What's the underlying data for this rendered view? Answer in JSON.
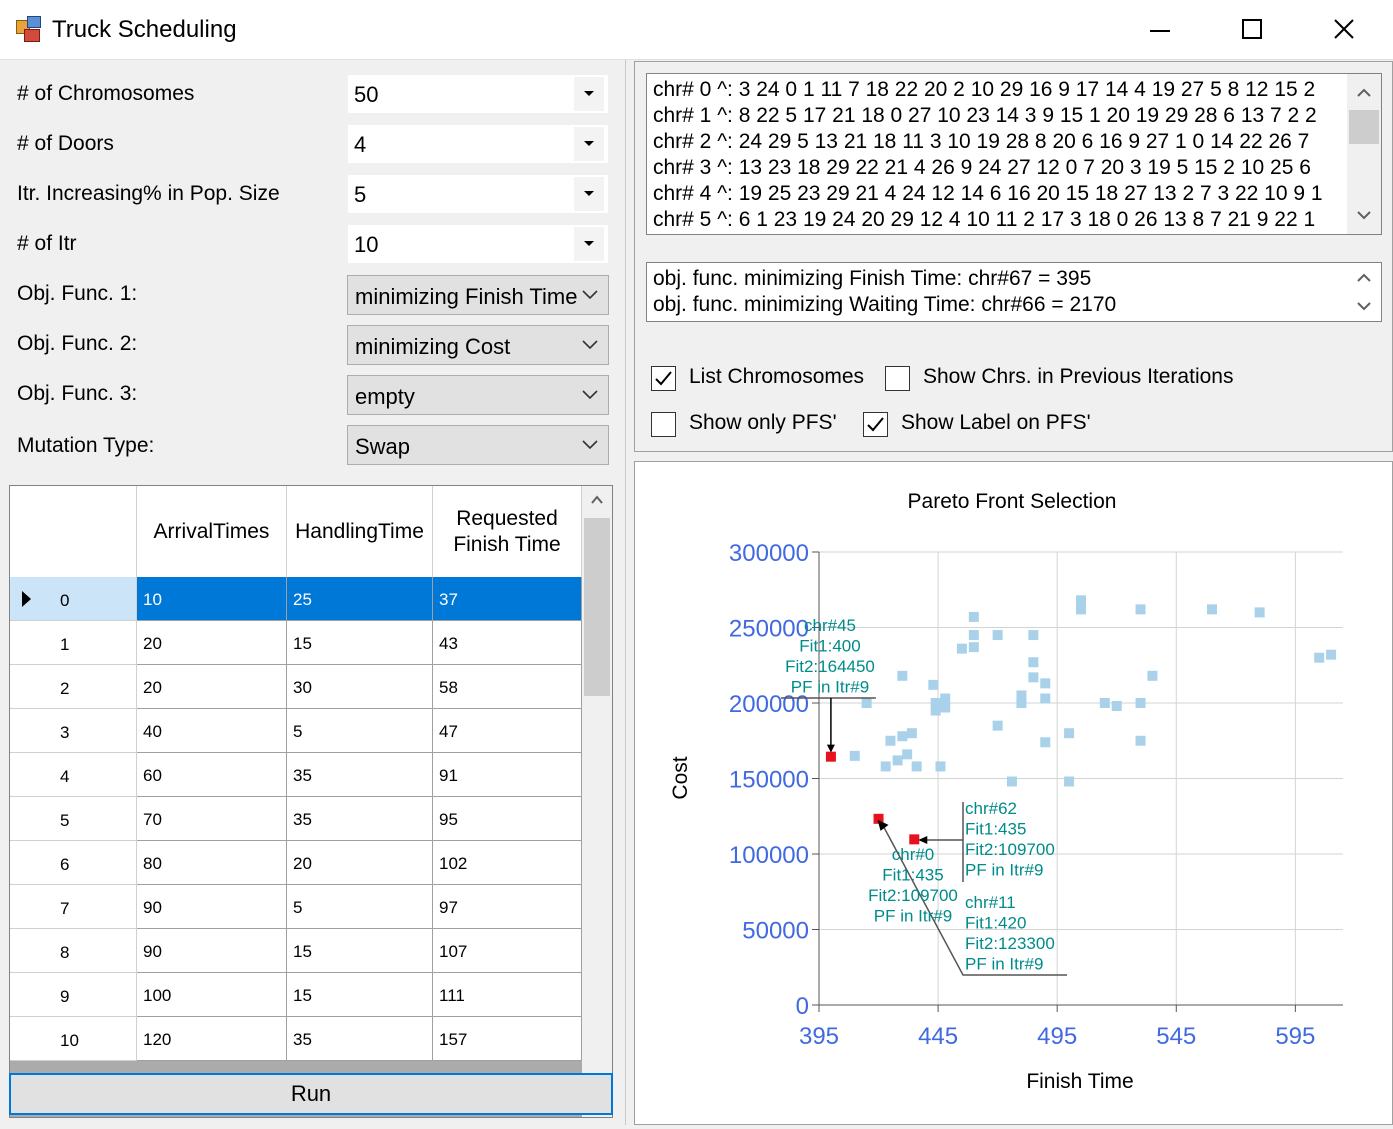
{
  "window": {
    "title": "Truck Scheduling"
  },
  "form": {
    "chromosomes": {
      "label": "# of Chromosomes",
      "value": "50"
    },
    "doors": {
      "label": "# of Doors",
      "value": "4"
    },
    "itr_increase": {
      "label": "Itr. Increasing% in Pop. Size",
      "value": "5"
    },
    "itr": {
      "label": "# of Itr",
      "value": "10"
    },
    "obj1": {
      "label": "Obj. Func. 1:",
      "value": "minimizing Finish Time"
    },
    "obj2": {
      "label": "Obj. Func. 2:",
      "value": "minimizing Cost"
    },
    "obj3": {
      "label": "Obj. Func. 3:",
      "value": "empty"
    },
    "mutation": {
      "label": "Mutation Type:",
      "value": "Swap"
    }
  },
  "grid": {
    "headers": [
      "ArrivalTimes",
      "HandlingTime",
      "Requested\nFinish Time"
    ],
    "header_line1": "Requested",
    "header_line2": "Finish Time",
    "rows": [
      [
        "0",
        "10",
        "25",
        "37"
      ],
      [
        "1",
        "20",
        "15",
        "43"
      ],
      [
        "2",
        "20",
        "30",
        "58"
      ],
      [
        "3",
        "40",
        "5",
        "47"
      ],
      [
        "4",
        "60",
        "35",
        "91"
      ],
      [
        "5",
        "70",
        "35",
        "95"
      ],
      [
        "6",
        "80",
        "20",
        "102"
      ],
      [
        "7",
        "90",
        "5",
        "97"
      ],
      [
        "8",
        "90",
        "15",
        "107"
      ],
      [
        "9",
        "100",
        "15",
        "111"
      ],
      [
        "10",
        "120",
        "35",
        "157"
      ]
    ]
  },
  "run_label": "Run",
  "chromosome_list": [
    "chr# 0 ^:  3 24 0 1 11 7 18 22 20 2 10 29 16 9 17 14 4 19 27 5 8 12 15 2",
    "chr# 1 ^:  8 22 5 17 21 18 0 27 10 23 14 3 9 15 1 20 19 29 28 6 13 7 2 2",
    "chr# 2 ^:  24 29 5 13 21 18 11 3 10 19 28 8 20 6 16 9 27 1 0 14 22 26 7",
    "chr# 3 ^:  13 23 18 29 22 21 4 26 9 24 27 12 0 7 20 3 19 5 15 2 10 25 6",
    "chr# 4 ^:  19 25 23 29 21 4 24 12 14 6 16 20 15 18 27 13 2 7 3 22 10 9 1",
    "chr# 5 ^:  6 1 23 19 24 20 29 12 4 10 11 2 17 3 18 0 26 13 8 7 21 9 22 1"
  ],
  "results": [
    "obj. func. minimizing Finish Time: chr#67 = 395",
    "obj. func. minimizing Waiting Time: chr#66 = 2170"
  ],
  "options": {
    "list_chromosomes": {
      "label": "List Chromosomes",
      "checked": true
    },
    "show_previous": {
      "label": "Show Chrs. in Previous Iterations",
      "checked": false
    },
    "show_only_pfs": {
      "label": "Show only PFS'",
      "checked": false
    },
    "show_label_pfs": {
      "label": "Show Label on PFS'",
      "checked": true
    }
  },
  "colors": {
    "selection": "#0078d7",
    "pareto": "#e8121e",
    "population": "#a9d2ea",
    "axis_label": "#4169e1",
    "annotation": "#008b8b"
  },
  "chart_data": {
    "type": "scatter",
    "title": "Pareto Front Selection",
    "xlabel": "Finish Time",
    "ylabel": "Cost",
    "xlim": [
      395,
      615
    ],
    "ylim": [
      0,
      300000
    ],
    "xticks": [
      395,
      445,
      495,
      545,
      595
    ],
    "yticks": [
      0,
      50000,
      100000,
      150000,
      200000,
      250000,
      300000
    ],
    "series": [
      {
        "points": [
          [
            415,
            200000
          ],
          [
            410,
            165000
          ],
          [
            425,
            175000
          ],
          [
            423,
            158000
          ],
          [
            428,
            162000
          ],
          [
            430,
            178000
          ],
          [
            432,
            166000
          ],
          [
            434,
            180000
          ],
          [
            436,
            158000
          ],
          [
            430,
            218000
          ],
          [
            443,
            212000
          ],
          [
            444,
            200000
          ],
          [
            444,
            195000
          ],
          [
            448,
            203000
          ],
          [
            448,
            197000
          ],
          [
            446,
            158000
          ],
          [
            455,
            236000
          ],
          [
            460,
            245000
          ],
          [
            460,
            257000
          ],
          [
            460,
            237000
          ],
          [
            470,
            245000
          ],
          [
            470,
            185000
          ],
          [
            476,
            148000
          ],
          [
            480,
            205000
          ],
          [
            480,
            200000
          ],
          [
            485,
            245000
          ],
          [
            485,
            227000
          ],
          [
            485,
            217000
          ],
          [
            490,
            213000
          ],
          [
            490,
            203000
          ],
          [
            490,
            174000
          ],
          [
            500,
            180000
          ],
          [
            500,
            148000
          ],
          [
            505,
            268000
          ],
          [
            505,
            262000
          ],
          [
            515,
            200000
          ],
          [
            520,
            198000
          ],
          [
            530,
            262000
          ],
          [
            530,
            200000
          ],
          [
            530,
            175000
          ],
          [
            535,
            218000
          ],
          [
            560,
            262000
          ],
          [
            580,
            260000
          ],
          [
            605,
            230000
          ],
          [
            610,
            232000
          ]
        ]
      },
      {
        "points": [
          [
            400,
            164450
          ],
          [
            420,
            123300
          ],
          [
            435,
            109700
          ]
        ],
        "labels": [
          [
            "chr#45",
            "Fit1:400",
            "Fit2:164450",
            "PF in Itr#9"
          ],
          [
            "chr#11",
            "Fit1:420",
            "Fit2:123300",
            "PF in Itr#9"
          ],
          [
            "chr#62",
            "Fit1:435",
            "Fit2:109700",
            "PF in Itr#9"
          ],
          [
            "chr#0",
            "Fit1:435",
            "Fit2:109700",
            "PF in Itr#9"
          ]
        ]
      }
    ]
  }
}
